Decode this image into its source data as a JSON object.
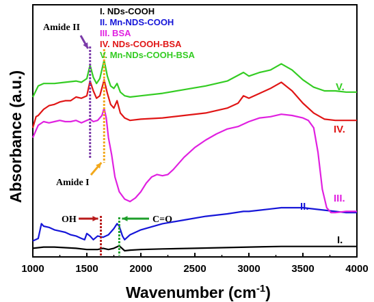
{
  "chart_data": {
    "type": "line",
    "xlabel": "Wavenumber (cm",
    "xlabel_sup": "-1",
    "xlabel_end": ")",
    "ylabel": "Absorbance (a.u.)",
    "xlim": [
      1000,
      4000
    ],
    "xticks": [
      1000,
      1500,
      2000,
      2500,
      3000,
      3500,
      4000
    ],
    "legend": [
      {
        "label": "I. NDs-COOH",
        "color": "#000000"
      },
      {
        "label": "II. Mn-NDS-COOH",
        "color": "#1515d8"
      },
      {
        "label": "III. BSA",
        "color": "#e020e0"
      },
      {
        "label": "IV. NDs-COOH-BSA",
        "color": "#e01515"
      },
      {
        "label": "V. Mn-NDs-COOH-BSA",
        "color": "#33cc22"
      }
    ],
    "series": [
      {
        "name": "I.",
        "color": "#000000",
        "points": [
          [
            1000,
            0.02
          ],
          [
            1100,
            0.03
          ],
          [
            1200,
            0.03
          ],
          [
            1300,
            0.025
          ],
          [
            1400,
            0.02
          ],
          [
            1500,
            0.01
          ],
          [
            1600,
            0.01
          ],
          [
            1650,
            0.02
          ],
          [
            1700,
            0.01
          ],
          [
            1750,
            0.02
          ],
          [
            1800,
            0.04
          ],
          [
            1850,
            0.0
          ],
          [
            1900,
            0.005
          ],
          [
            2000,
            0.01
          ],
          [
            2200,
            0.015
          ],
          [
            2500,
            0.02
          ],
          [
            3000,
            0.03
          ],
          [
            3300,
            0.035
          ],
          [
            3500,
            0.035
          ],
          [
            3700,
            0.035
          ],
          [
            4000,
            0.035
          ]
        ]
      },
      {
        "name": "II.",
        "color": "#1515d8",
        "points": [
          [
            1000,
            0.08
          ],
          [
            1050,
            0.1
          ],
          [
            1080,
            0.22
          ],
          [
            1100,
            0.2
          ],
          [
            1150,
            0.19
          ],
          [
            1200,
            0.17
          ],
          [
            1250,
            0.16
          ],
          [
            1300,
            0.15
          ],
          [
            1350,
            0.13
          ],
          [
            1400,
            0.12
          ],
          [
            1450,
            0.1
          ],
          [
            1480,
            0.09
          ],
          [
            1500,
            0.14
          ],
          [
            1530,
            0.12
          ],
          [
            1560,
            0.09
          ],
          [
            1600,
            0.12
          ],
          [
            1650,
            0.11
          ],
          [
            1700,
            0.13
          ],
          [
            1750,
            0.18
          ],
          [
            1780,
            0.22
          ],
          [
            1800,
            0.2
          ],
          [
            1830,
            0.12
          ],
          [
            1850,
            0.09
          ],
          [
            1900,
            0.13
          ],
          [
            2000,
            0.17
          ],
          [
            2200,
            0.22
          ],
          [
            2400,
            0.25
          ],
          [
            2600,
            0.28
          ],
          [
            2800,
            0.3
          ],
          [
            2950,
            0.32
          ],
          [
            3000,
            0.32
          ],
          [
            3200,
            0.34
          ],
          [
            3300,
            0.35
          ],
          [
            3500,
            0.35
          ],
          [
            3700,
            0.33
          ],
          [
            3900,
            0.31
          ],
          [
            4000,
            0.31
          ]
        ]
      },
      {
        "name": "III.",
        "color": "#e020e0",
        "points": [
          [
            1000,
            0.92
          ],
          [
            1030,
            0.98
          ],
          [
            1050,
            1.02
          ],
          [
            1100,
            1.05
          ],
          [
            1150,
            1.04
          ],
          [
            1200,
            1.05
          ],
          [
            1250,
            1.06
          ],
          [
            1300,
            1.05
          ],
          [
            1350,
            1.05
          ],
          [
            1400,
            1.06
          ],
          [
            1450,
            1.04
          ],
          [
            1500,
            1.06
          ],
          [
            1530,
            1.07
          ],
          [
            1560,
            1.05
          ],
          [
            1600,
            1.06
          ],
          [
            1640,
            1.1
          ],
          [
            1660,
            1.16
          ],
          [
            1680,
            1.08
          ],
          [
            1700,
            0.92
          ],
          [
            1730,
            0.78
          ],
          [
            1760,
            0.6
          ],
          [
            1800,
            0.48
          ],
          [
            1850,
            0.42
          ],
          [
            1900,
            0.4
          ],
          [
            1950,
            0.43
          ],
          [
            2000,
            0.48
          ],
          [
            2050,
            0.55
          ],
          [
            2100,
            0.6
          ],
          [
            2150,
            0.62
          ],
          [
            2200,
            0.61
          ],
          [
            2250,
            0.62
          ],
          [
            2300,
            0.66
          ],
          [
            2400,
            0.76
          ],
          [
            2500,
            0.84
          ],
          [
            2600,
            0.9
          ],
          [
            2700,
            0.95
          ],
          [
            2800,
            0.99
          ],
          [
            2900,
            1.01
          ],
          [
            2950,
            1.03
          ],
          [
            3000,
            1.05
          ],
          [
            3100,
            1.08
          ],
          [
            3200,
            1.09
          ],
          [
            3300,
            1.11
          ],
          [
            3400,
            1.1
          ],
          [
            3500,
            1.08
          ],
          [
            3550,
            1.06
          ],
          [
            3600,
            1.0
          ],
          [
            3640,
            0.8
          ],
          [
            3680,
            0.5
          ],
          [
            3720,
            0.35
          ],
          [
            3760,
            0.31
          ],
          [
            3800,
            0.31
          ],
          [
            3900,
            0.32
          ],
          [
            4000,
            0.32
          ]
        ]
      },
      {
        "name": "IV.",
        "color": "#e01515",
        "points": [
          [
            1000,
            1.0
          ],
          [
            1030,
            1.09
          ],
          [
            1050,
            1.1
          ],
          [
            1100,
            1.15
          ],
          [
            1150,
            1.18
          ],
          [
            1200,
            1.19
          ],
          [
            1250,
            1.21
          ],
          [
            1300,
            1.22
          ],
          [
            1350,
            1.22
          ],
          [
            1400,
            1.25
          ],
          [
            1450,
            1.24
          ],
          [
            1500,
            1.26
          ],
          [
            1530,
            1.38
          ],
          [
            1560,
            1.3
          ],
          [
            1590,
            1.24
          ],
          [
            1620,
            1.26
          ],
          [
            1660,
            1.39
          ],
          [
            1690,
            1.28
          ],
          [
            1720,
            1.19
          ],
          [
            1750,
            1.16
          ],
          [
            1780,
            1.22
          ],
          [
            1810,
            1.12
          ],
          [
            1850,
            1.08
          ],
          [
            1900,
            1.06
          ],
          [
            2000,
            1.07
          ],
          [
            2200,
            1.08
          ],
          [
            2400,
            1.1
          ],
          [
            2600,
            1.12
          ],
          [
            2800,
            1.16
          ],
          [
            2900,
            1.2
          ],
          [
            2950,
            1.26
          ],
          [
            3000,
            1.24
          ],
          [
            3100,
            1.28
          ],
          [
            3200,
            1.32
          ],
          [
            3300,
            1.37
          ],
          [
            3400,
            1.3
          ],
          [
            3500,
            1.2
          ],
          [
            3600,
            1.12
          ],
          [
            3700,
            1.07
          ],
          [
            3800,
            1.06
          ],
          [
            3900,
            1.06
          ],
          [
            4000,
            1.06
          ]
        ]
      },
      {
        "name": "V.",
        "color": "#33cc22",
        "points": [
          [
            1000,
            1.25
          ],
          [
            1050,
            1.34
          ],
          [
            1100,
            1.36
          ],
          [
            1200,
            1.36
          ],
          [
            1300,
            1.37
          ],
          [
            1400,
            1.38
          ],
          [
            1450,
            1.37
          ],
          [
            1500,
            1.4
          ],
          [
            1530,
            1.51
          ],
          [
            1560,
            1.41
          ],
          [
            1590,
            1.36
          ],
          [
            1620,
            1.4
          ],
          [
            1660,
            1.55
          ],
          [
            1690,
            1.42
          ],
          [
            1720,
            1.34
          ],
          [
            1750,
            1.32
          ],
          [
            1780,
            1.36
          ],
          [
            1810,
            1.29
          ],
          [
            1850,
            1.26
          ],
          [
            1900,
            1.25
          ],
          [
            2000,
            1.26
          ],
          [
            2200,
            1.28
          ],
          [
            2400,
            1.31
          ],
          [
            2600,
            1.34
          ],
          [
            2800,
            1.38
          ],
          [
            2950,
            1.45
          ],
          [
            3000,
            1.42
          ],
          [
            3100,
            1.45
          ],
          [
            3200,
            1.47
          ],
          [
            3300,
            1.52
          ],
          [
            3400,
            1.47
          ],
          [
            3500,
            1.39
          ],
          [
            3600,
            1.33
          ],
          [
            3700,
            1.3
          ],
          [
            3800,
            1.3
          ],
          [
            3900,
            1.29
          ],
          [
            4000,
            1.29
          ]
        ]
      }
    ],
    "annotations": {
      "amide2": {
        "text": "Amide II",
        "color": "#7a3aa8",
        "x": 1530
      },
      "amide1": {
        "text": "Amide I",
        "color": "#f2a81c",
        "x": 1660
      },
      "oh": {
        "text": "OH",
        "color": "#b81a1a",
        "x": 1630
      },
      "co": {
        "text": "C=O",
        "color": "#1e9e2a",
        "x": 1800
      }
    }
  }
}
